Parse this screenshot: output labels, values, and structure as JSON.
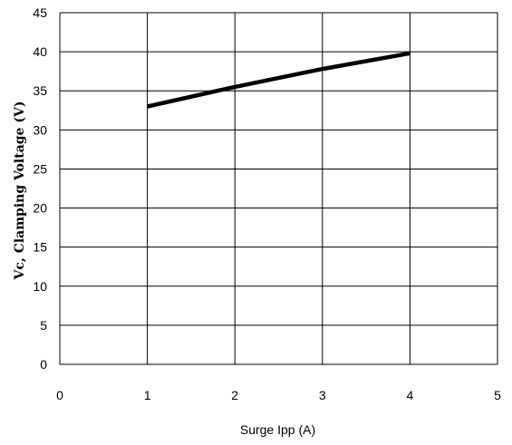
{
  "chart_data": {
    "type": "line",
    "title": "",
    "xlabel": "Surge Ipp (A)",
    "ylabel": "Vc, Clamping Voltage (V)",
    "xlim": [
      0,
      5
    ],
    "ylim": [
      0,
      45
    ],
    "x_ticks": [
      "0",
      "1",
      "2",
      "3",
      "4",
      "5"
    ],
    "y_ticks": [
      "0",
      "5",
      "10",
      "15",
      "20",
      "25",
      "30",
      "35",
      "40",
      "45"
    ],
    "grid": true,
    "legend": "none",
    "series": [
      {
        "x": [
          1,
          2,
          3,
          4
        ],
        "y": [
          33,
          35.5,
          37.8,
          39.8
        ],
        "color": "#000000"
      }
    ]
  }
}
